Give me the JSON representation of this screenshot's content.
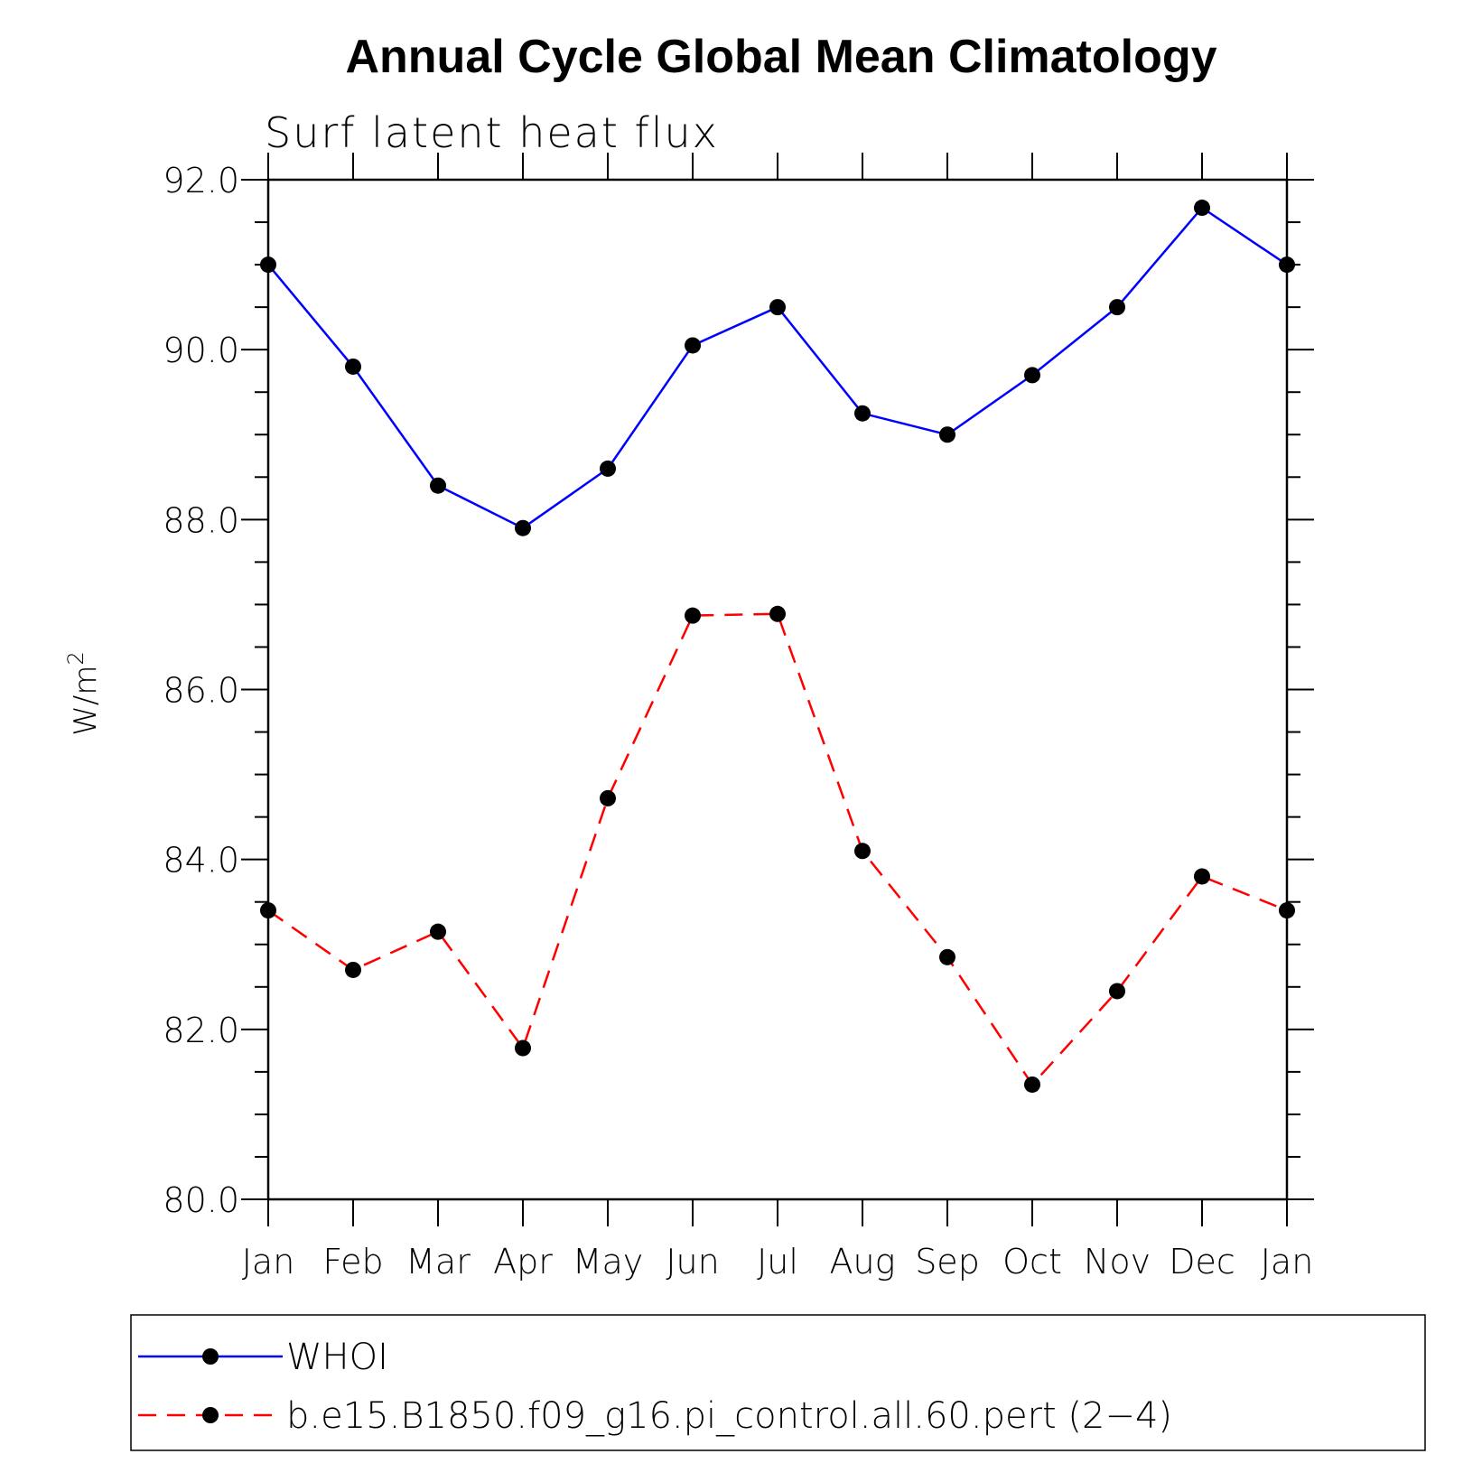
{
  "chart_data": {
    "type": "line",
    "title": "Annual Cycle Global Mean Climatology",
    "subtitle": "Surf latent heat flux",
    "xlabel": "",
    "ylabel": "W/m",
    "ylabel_superscript": "2",
    "ylim": [
      80.0,
      92.0
    ],
    "yticks": [
      80.0,
      82.0,
      84.0,
      86.0,
      88.0,
      90.0,
      92.0
    ],
    "ytick_labels": [
      "80.0",
      "82.0",
      "84.0",
      "86.0",
      "88.0",
      "90.0",
      "92.0"
    ],
    "categories": [
      "Jan",
      "Feb",
      "Mar",
      "Apr",
      "May",
      "Jun",
      "Jul",
      "Aug",
      "Sep",
      "Oct",
      "Nov",
      "Dec",
      "Jan"
    ],
    "legend_position": "bottom",
    "series": [
      {
        "name": "WHOI",
        "color": "#0000ff",
        "line_style": "solid",
        "values": [
          91.0,
          89.8,
          88.4,
          87.9,
          88.6,
          90.05,
          90.5,
          89.25,
          89.0,
          89.7,
          90.5,
          91.67,
          91.0
        ]
      },
      {
        "name": "b.e15.B1850.f09_g16.pi_control.all.60.pert (2−4)",
        "color": "#ff0000",
        "line_style": "dashed",
        "values": [
          83.4,
          82.7,
          83.15,
          81.78,
          84.72,
          86.87,
          86.89,
          84.1,
          82.85,
          81.35,
          82.45,
          83.8,
          83.4
        ]
      }
    ]
  }
}
